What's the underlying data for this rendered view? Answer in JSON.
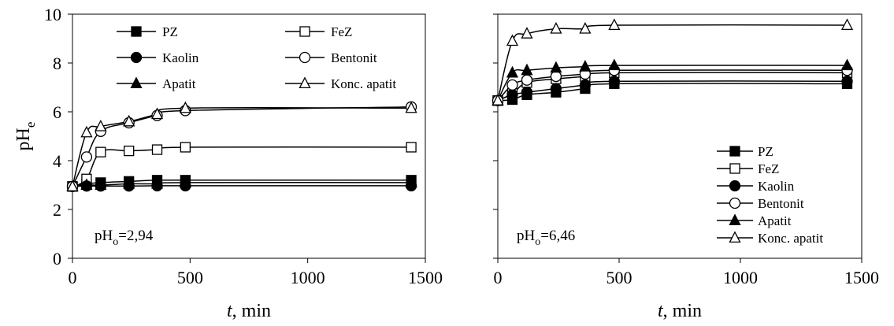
{
  "chart_data": [
    {
      "type": "line",
      "xlabel": "t, min",
      "xlabel_italic": "t",
      "xlabel_rest": ", min",
      "ylabel": "pHe",
      "ylabel_main": "pH",
      "ylabel_sub": "e",
      "xlim": [
        0,
        1500
      ],
      "ylim": [
        0,
        10
      ],
      "xticks": [
        0,
        500,
        1000,
        1500
      ],
      "yticks": [
        0,
        2,
        4,
        6,
        8,
        10
      ],
      "show_yticklabels": true,
      "annotation": {
        "main": "pH",
        "sub": "o",
        "rest": "=2,94"
      },
      "legend_placement": "top",
      "x": [
        0,
        60,
        120,
        240,
        360,
        480,
        1440
      ],
      "series": [
        {
          "name": "PZ",
          "marker": "square-filled",
          "values": [
            2.94,
            3.05,
            3.1,
            3.15,
            3.2,
            3.2,
            3.2
          ]
        },
        {
          "name": "FeZ",
          "marker": "square-open",
          "values": [
            2.94,
            3.25,
            4.35,
            4.4,
            4.45,
            4.55,
            4.55
          ]
        },
        {
          "name": "Kaolin",
          "marker": "circle-filled",
          "values": [
            2.94,
            2.96,
            2.96,
            2.96,
            2.97,
            2.97,
            2.97
          ]
        },
        {
          "name": "Bentonit",
          "marker": "circle-open",
          "values": [
            2.94,
            4.15,
            5.2,
            5.55,
            5.85,
            6.05,
            6.2
          ]
        },
        {
          "name": "Apatit",
          "marker": "triangle-filled",
          "values": [
            2.94,
            3.0,
            3.0,
            3.05,
            3.05,
            3.1,
            3.1
          ]
        },
        {
          "name": "Konc. apatit",
          "marker": "triangle-open",
          "values": [
            2.94,
            5.15,
            5.4,
            5.6,
            5.9,
            6.15,
            6.15
          ]
        }
      ]
    },
    {
      "type": "line",
      "xlabel": "t, min",
      "xlabel_italic": "t",
      "xlabel_rest": ", min",
      "xlim": [
        0,
        1500
      ],
      "ylim": [
        0,
        10
      ],
      "xticks": [
        0,
        500,
        1000,
        1500
      ],
      "yticks": [
        0,
        2,
        4,
        6,
        8,
        10
      ],
      "show_yticklabels": false,
      "annotation": {
        "main": "pH",
        "sub": "o",
        "rest": "=6,46"
      },
      "legend_placement": "bottom-right",
      "x": [
        0,
        60,
        120,
        240,
        360,
        480,
        1440
      ],
      "series": [
        {
          "name": "PZ",
          "marker": "square-filled",
          "values": [
            6.46,
            6.5,
            6.7,
            6.8,
            6.95,
            7.15,
            7.15
          ]
        },
        {
          "name": "FeZ",
          "marker": "square-open",
          "values": [
            6.46,
            6.75,
            7.2,
            7.35,
            7.45,
            7.6,
            7.6
          ]
        },
        {
          "name": "Kaolin",
          "marker": "circle-filled",
          "values": [
            6.46,
            6.7,
            6.8,
            6.95,
            7.1,
            7.25,
            7.25
          ]
        },
        {
          "name": "Bentonit",
          "marker": "circle-open",
          "values": [
            6.46,
            7.1,
            7.3,
            7.45,
            7.55,
            7.7,
            7.7
          ]
        },
        {
          "name": "Apatit",
          "marker": "triangle-filled",
          "values": [
            6.46,
            7.6,
            7.7,
            7.8,
            7.85,
            7.9,
            7.9
          ]
        },
        {
          "name": "Konc. apatit",
          "marker": "triangle-open",
          "values": [
            6.46,
            8.9,
            9.2,
            9.4,
            9.4,
            9.55,
            9.55
          ]
        }
      ]
    }
  ]
}
